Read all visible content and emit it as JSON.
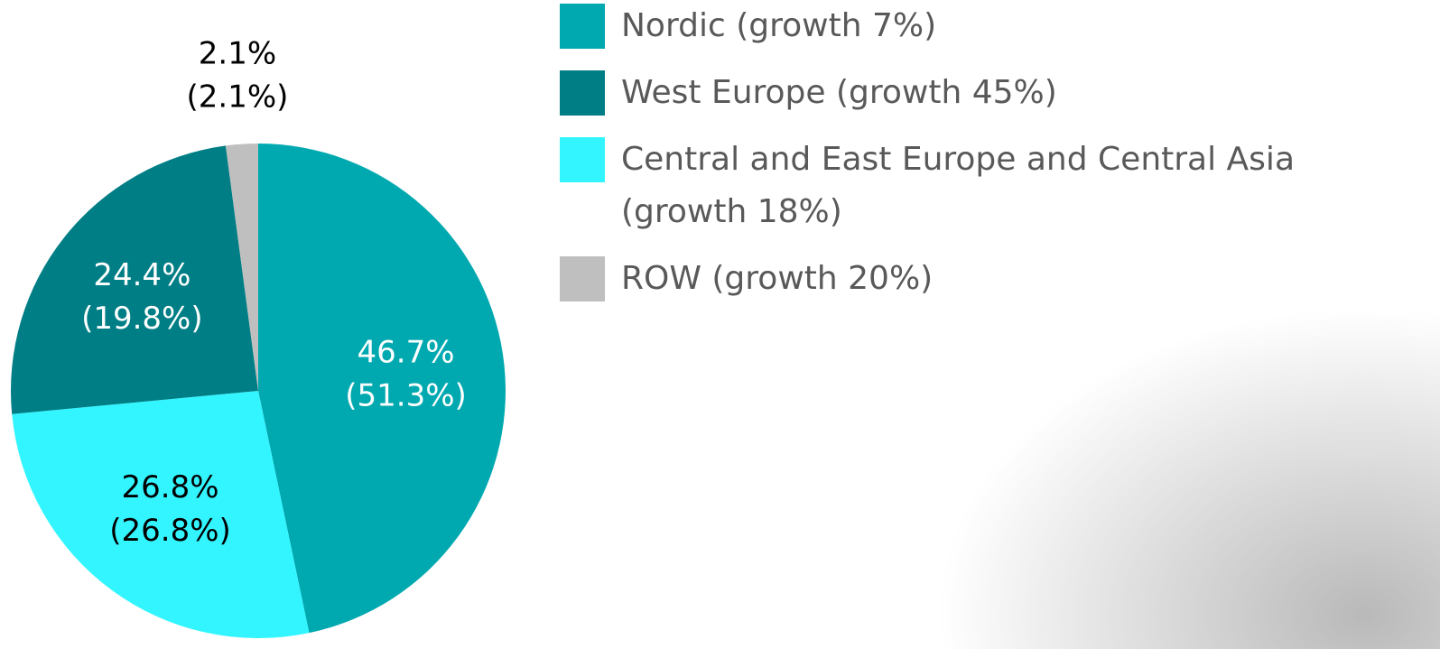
{
  "chart_data": {
    "type": "pie",
    "values": [
      46.7,
      26.8,
      24.4,
      2.1
    ],
    "value_labels": [
      "46.7%",
      "26.8%",
      "24.4%",
      "2.1%"
    ],
    "comparison_values": [
      51.3,
      26.8,
      19.8,
      2.1
    ],
    "comparison_labels": [
      "(51.3%)",
      "(26.8%)",
      "(19.8%)",
      "(2.1%)"
    ],
    "colors": [
      "#00a9b0",
      "#33f5ff",
      "#007e85",
      "#bfbfbf"
    ],
    "label_colors": [
      "#ffffff",
      "#000000",
      "#ffffff",
      "#000000"
    ],
    "legend": [
      {
        "label": "Nordic (growth 7%)",
        "color": "#00a9b0"
      },
      {
        "label": "West Europe (growth 45%)",
        "color": "#007e85"
      },
      {
        "label": "Central and East Europe and Central Asia (growth 18%)",
        "color": "#33f5ff"
      },
      {
        "label": "ROW (growth 20%)",
        "color": "#bfbfbf"
      }
    ]
  }
}
